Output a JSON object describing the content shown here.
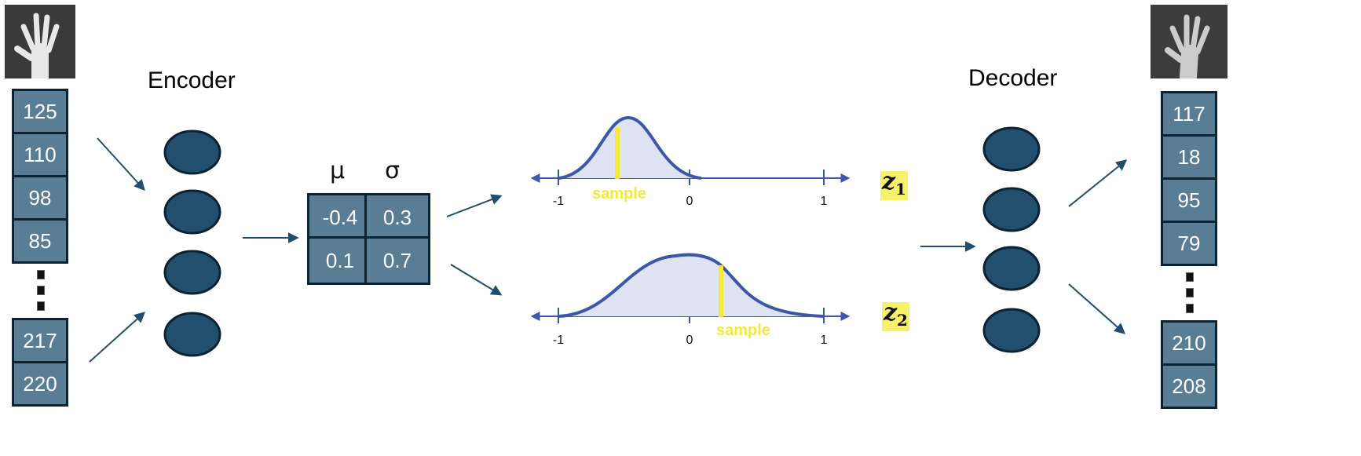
{
  "encoder": {
    "title": "Encoder",
    "input_top": [
      "125",
      "110",
      "98",
      "85"
    ],
    "input_bottom": [
      "217",
      "220"
    ]
  },
  "latent": {
    "mu_label": "μ",
    "sigma_label": "σ",
    "rows": [
      {
        "mu": "-0.4",
        "sigma": "0.3"
      },
      {
        "mu": "0.1",
        "sigma": "0.7"
      }
    ]
  },
  "distributions": [
    {
      "z_letter": "z",
      "z_index": "1",
      "sample_label": "sample",
      "ticks": [
        "-1",
        "0",
        "1"
      ]
    },
    {
      "z_letter": "z",
      "z_index": "2",
      "sample_label": "sample",
      "ticks": [
        "-1",
        "0",
        "1"
      ]
    }
  ],
  "decoder": {
    "title": "Decoder",
    "output_top": [
      "117",
      "18",
      "95",
      "79"
    ],
    "output_bottom": [
      "210",
      "208"
    ]
  },
  "colors": {
    "cell_fill": "#5a7d96",
    "node_fill": "#234f6e",
    "curve": "#3d57a8",
    "sample_bar": "#f4e93a",
    "arrow": "#1f4e6e"
  }
}
